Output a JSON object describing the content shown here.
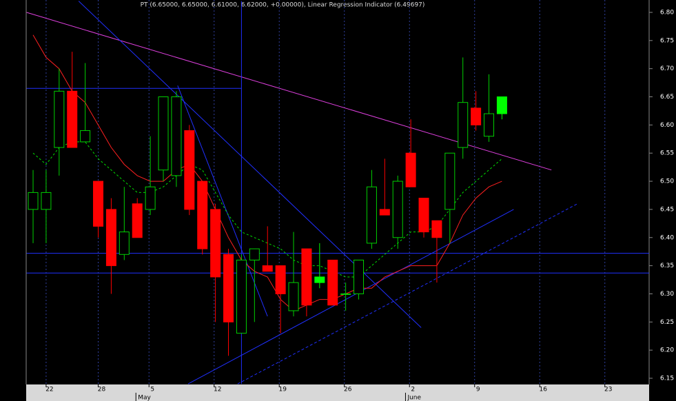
{
  "chart_data": {
    "type": "candlestick",
    "title": "PT (6.65000, 6.65000, 6.61000, 6.62000, +0.00000), Linear Regression Indicator (6.49697)",
    "open": [
      6.45,
      6.45,
      6.56,
      6.66,
      6.57,
      6.5,
      6.45,
      6.37,
      6.46,
      6.45,
      6.52,
      6.51,
      6.59,
      6.5,
      6.45,
      6.37,
      6.23,
      6.36,
      6.35,
      6.35,
      6.27,
      6.38,
      6.32,
      6.36,
      6.3,
      6.3,
      6.39,
      6.45,
      6.4,
      6.55,
      6.47,
      6.43,
      6.45,
      6.56,
      6.63,
      6.58,
      6.65
    ],
    "high": [
      6.52,
      6.52,
      6.7,
      6.73,
      6.71,
      6.5,
      6.47,
      6.49,
      6.47,
      6.58,
      6.65,
      6.66,
      6.6,
      6.5,
      6.46,
      6.38,
      6.37,
      6.38,
      6.42,
      6.35,
      6.41,
      6.38,
      6.39,
      6.36,
      6.32,
      6.36,
      6.52,
      6.54,
      6.51,
      6.61,
      6.47,
      6.43,
      6.55,
      6.72,
      6.66,
      6.69,
      6.65
    ],
    "low": [
      6.39,
      6.39,
      6.51,
      6.56,
      6.57,
      6.4,
      6.3,
      6.36,
      6.4,
      6.44,
      6.5,
      6.49,
      6.44,
      6.37,
      6.25,
      6.19,
      6.23,
      6.25,
      6.34,
      6.23,
      6.26,
      6.26,
      6.31,
      6.28,
      6.27,
      6.29,
      6.38,
      6.44,
      6.38,
      6.49,
      6.4,
      6.32,
      6.39,
      6.54,
      6.59,
      6.57,
      6.61
    ],
    "close": [
      6.48,
      6.48,
      6.66,
      6.56,
      6.59,
      6.42,
      6.35,
      6.41,
      6.4,
      6.49,
      6.65,
      6.65,
      6.45,
      6.38,
      6.33,
      6.25,
      6.36,
      6.38,
      6.34,
      6.3,
      6.32,
      6.28,
      6.33,
      6.28,
      6.3,
      6.36,
      6.49,
      6.44,
      6.5,
      6.49,
      6.41,
      6.4,
      6.55,
      6.64,
      6.6,
      6.62,
      6.62
    ],
    "colors": [
      "#00d000",
      "#00d000",
      "#00d000",
      "#ff0000",
      "#00d000",
      "#ff0000",
      "#ff0000",
      "#00d000",
      "#ff0000",
      "#00d000",
      "#00d000",
      "#00d000",
      "#ff0000",
      "#ff0000",
      "#ff0000",
      "#ff0000",
      "#00d000",
      "#00d000",
      "#ff0000",
      "#ff0000",
      "#00d000",
      "#ff0000",
      "#00ff00",
      "#ff0000",
      "#00d000",
      "#00d000",
      "#00d000",
      "#ff0000",
      "#00d000",
      "#ff0000",
      "#ff0000",
      "#ff0000",
      "#00d000",
      "#00d000",
      "#ff0000",
      "#00d000",
      "#00ff00"
    ],
    "hollow_color": "#00d000",
    "series": [
      {
        "color": "#ff2020",
        "dash": "none",
        "values": [
          6.76,
          6.72,
          6.7,
          6.66,
          6.64,
          6.6,
          6.56,
          6.53,
          6.51,
          6.5,
          6.5,
          6.52,
          6.53,
          6.5,
          6.45,
          6.4,
          6.36,
          6.34,
          6.33,
          6.29,
          6.27,
          6.28,
          6.29,
          6.29,
          6.3,
          6.31,
          6.31,
          6.33,
          6.34,
          6.35,
          6.35,
          6.35,
          6.39,
          6.44,
          6.47,
          6.49,
          6.5
        ]
      },
      {
        "color": "#00e000",
        "dash": "3 3",
        "values": [
          6.55,
          6.53,
          6.56,
          6.57,
          6.57,
          6.54,
          6.52,
          6.5,
          6.48,
          6.48,
          6.49,
          6.51,
          6.53,
          6.52,
          6.48,
          6.44,
          6.41,
          6.4,
          6.39,
          6.38,
          6.36,
          6.35,
          6.35,
          6.34,
          6.33,
          6.33,
          6.35,
          6.37,
          6.39,
          6.41,
          6.41,
          6.42,
          6.45,
          6.48,
          6.5,
          6.52,
          6.54
        ]
      }
    ],
    "overlays": [
      {
        "color": "#e040e0",
        "dash": "none",
        "x": [
          -0.5,
          39.8
        ],
        "y": [
          6.8,
          6.52
        ]
      },
      {
        "color": "#2030ff",
        "dash": "none",
        "x": [
          -0.5,
          16
        ],
        "y": [
          6.665,
          6.665
        ]
      },
      {
        "color": "#2030ff",
        "dash": "none",
        "x": [
          -0.5,
          47.3
        ],
        "y": [
          6.372,
          6.372
        ]
      },
      {
        "color": "#2030ff",
        "dash": "none",
        "x": [
          -0.5,
          47.3
        ],
        "y": [
          6.337,
          6.337
        ]
      },
      {
        "color": "#2030ff",
        "dash": "none",
        "x": [
          16,
          16
        ],
        "y": [
          6.82,
          6.14
        ]
      },
      {
        "color": "#2030ff",
        "dash": "none",
        "x": [
          3.5,
          29.8
        ],
        "y": [
          6.82,
          6.24
        ]
      },
      {
        "color": "#2030ff",
        "dash": "none",
        "x": [
          11.1,
          18
        ],
        "y": [
          6.67,
          6.26
        ]
      },
      {
        "color": "#2030ff",
        "dash": "none",
        "x": [
          11.9,
          36.9
        ],
        "y": [
          6.14,
          6.45
        ]
      },
      {
        "color": "#2030ff",
        "dash": "4 3",
        "x": [
          15.7,
          41.8
        ],
        "y": [
          6.14,
          6.46
        ]
      }
    ],
    "xlim": [
      -0.53,
      47.3
    ],
    "xticks": [
      {
        "value": 1,
        "label": "22"
      },
      {
        "value": 5,
        "label": "28"
      },
      {
        "value": 8.9,
        "label": "5"
      },
      {
        "value": 13.9,
        "label": "12"
      },
      {
        "value": 18.9,
        "label": "19"
      },
      {
        "value": 23.9,
        "label": "26"
      },
      {
        "value": 28.9,
        "label": "2"
      },
      {
        "value": 33.9,
        "label": "9"
      },
      {
        "value": 38.9,
        "label": "16"
      },
      {
        "value": 43.9,
        "label": "23"
      }
    ],
    "month_labels": [
      {
        "value": 8,
        "label": "May"
      },
      {
        "value": 28.7,
        "label": "June"
      }
    ],
    "ylim": [
      6.139,
      6.822
    ],
    "yticks": [
      6.15,
      {
        "value": 6.2,
        "label": "6.20"
      },
      6.25,
      {
        "value": 6.3,
        "label": "6.30"
      },
      6.35,
      {
        "value": 6.4,
        "label": "6.40"
      },
      6.45,
      {
        "value": 6.5,
        "label": "6.50"
      },
      6.55,
      {
        "value": 6.6,
        "label": "6.60"
      },
      6.65,
      {
        "value": 6.7,
        "label": "6.70"
      },
      6.75,
      {
        "value": 6.8,
        "label": "6.80"
      }
    ],
    "grid": true
  }
}
